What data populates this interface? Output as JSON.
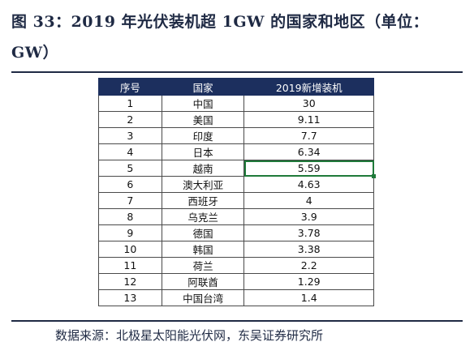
{
  "title": "图 33：2019 年光伏装机超 1GW 的国家和地区（单位：GW）",
  "table": {
    "headers": [
      "序号",
      "国家",
      "2019新增装机"
    ],
    "rows": [
      {
        "index": "1",
        "country": "中国",
        "value": "30"
      },
      {
        "index": "2",
        "country": "美国",
        "value": "9.11"
      },
      {
        "index": "3",
        "country": "印度",
        "value": "7.7"
      },
      {
        "index": "4",
        "country": "日本",
        "value": "6.34"
      },
      {
        "index": "5",
        "country": "越南",
        "value": "5.59"
      },
      {
        "index": "6",
        "country": "澳大利亚",
        "value": "4.63"
      },
      {
        "index": "7",
        "country": "西班牙",
        "value": "4"
      },
      {
        "index": "8",
        "country": "乌克兰",
        "value": "3.9"
      },
      {
        "index": "9",
        "country": "德国",
        "value": "3.78"
      },
      {
        "index": "10",
        "country": "韩国",
        "value": "3.38"
      },
      {
        "index": "11",
        "country": "荷兰",
        "value": "2.2"
      },
      {
        "index": "12",
        "country": "阿联酋",
        "value": "1.29"
      },
      {
        "index": "13",
        "country": "中国台湾",
        "value": "1.4"
      }
    ],
    "selected_cell": {
      "row": 4,
      "column": "value"
    }
  },
  "source": "数据来源：北极星太阳能光伏网，东吴证券研究所",
  "colors": {
    "header_bg": "#1c2f5e",
    "title_text": "#1f2a44",
    "selection": "#1f7a3a"
  }
}
